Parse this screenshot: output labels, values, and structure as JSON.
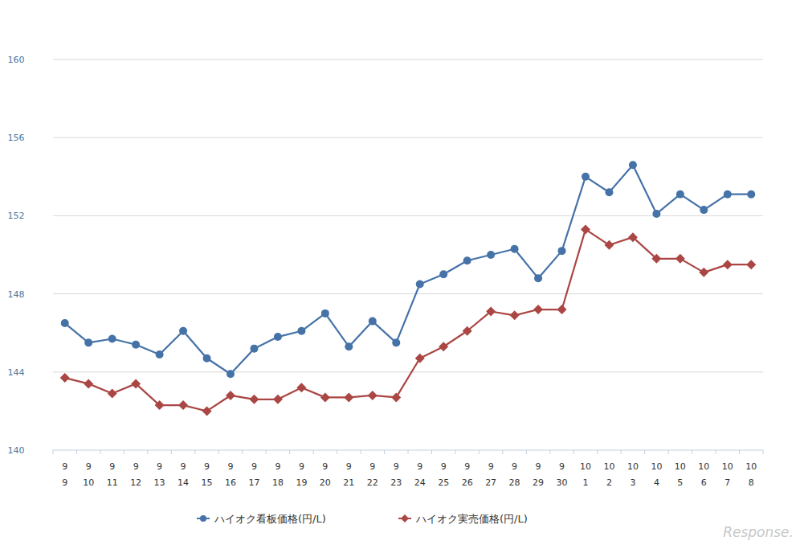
{
  "chart_data": {
    "type": "line",
    "categories": [
      "9\n9",
      "9\n10",
      "9\n11",
      "9\n12",
      "9\n13",
      "9\n14",
      "9\n15",
      "9\n16",
      "9\n17",
      "9\n18",
      "9\n19",
      "9\n20",
      "9\n21",
      "9\n22",
      "9\n23",
      "9\n24",
      "9\n25",
      "9\n26",
      "9\n27",
      "9\n28",
      "9\n29",
      "9\n30",
      "10\n1",
      "10\n2",
      "10\n3",
      "10\n4",
      "10\n5",
      "10\n6",
      "10\n7",
      "10\n8"
    ],
    "series": [
      {
        "name": "ハイオク看板価格(円/L)",
        "color": "#4572a7",
        "marker": "circle",
        "values": [
          146.5,
          145.5,
          145.7,
          145.4,
          144.9,
          146.1,
          144.7,
          143.9,
          145.2,
          145.8,
          146.1,
          147.0,
          145.3,
          146.6,
          145.5,
          148.5,
          149.0,
          149.7,
          150.0,
          150.3,
          148.8,
          150.2,
          154.0,
          153.2,
          154.6,
          152.1,
          153.1,
          152.3,
          153.1,
          153.1
        ]
      },
      {
        "name": "ハイオク実売価格(円/L)",
        "color": "#aa4643",
        "marker": "diamond",
        "values": [
          143.7,
          143.4,
          142.9,
          143.4,
          142.3,
          142.3,
          142.0,
          142.8,
          142.6,
          142.6,
          143.2,
          142.7,
          142.7,
          142.8,
          142.7,
          144.7,
          145.3,
          146.1,
          147.1,
          146.9,
          147.2,
          147.2,
          151.3,
          150.5,
          150.9,
          149.8,
          149.8,
          149.1,
          149.5,
          149.5
        ]
      }
    ],
    "ylim": [
      140,
      160
    ],
    "yticks": [
      140,
      144,
      148,
      152,
      156,
      160
    ],
    "grid": true,
    "legend": "bottom",
    "annotations": [
      "Response."
    ]
  }
}
